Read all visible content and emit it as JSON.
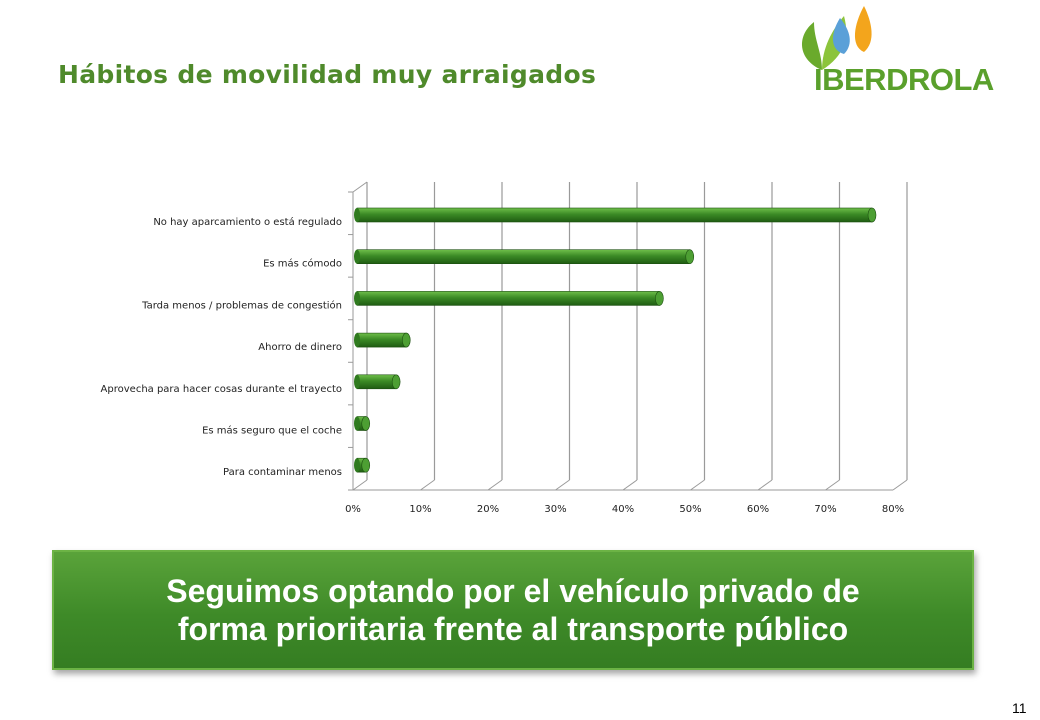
{
  "slide": {
    "title": "Hábitos de movilidad muy arraigados",
    "banner_text": "Seguimos optando por el vehículo privado de\nforma prioritaria frente al transporte público",
    "page_number": "11"
  },
  "logo": {
    "text": "IBERDROLA",
    "colors": {
      "leaf_green": "#6aaa2c",
      "drop_blue": "#5aa0d8",
      "drop_orange": "#f3a51c",
      "text_green": "#5aa02c"
    }
  },
  "colors": {
    "title": "#4f8a2b",
    "bar": "#3b8a25",
    "bar_dark": "#1f5c12",
    "grid": "#9a9a9a",
    "banner": "#44902c"
  },
  "chart_data": {
    "type": "bar",
    "orientation": "horizontal",
    "title": "",
    "xlabel": "",
    "ylabel": "",
    "categories": [
      "No hay aparcamiento o está regulado",
      "Es más cómodo",
      "Tarda menos / problemas de congestión",
      "Ahorro de dinero",
      "Aprovecha para hacer cosas durante el trayecto",
      "Es más seguro que el coche",
      "Para contaminar menos"
    ],
    "values": [
      76,
      49,
      44.5,
      7,
      5.5,
      1,
      1
    ],
    "xlim": [
      0,
      80
    ],
    "xticks": [
      "0%",
      "10%",
      "20%",
      "30%",
      "40%",
      "50%",
      "60%",
      "70%",
      "80%"
    ],
    "grid": true,
    "legend": "none",
    "style": "3d-cylinder"
  }
}
